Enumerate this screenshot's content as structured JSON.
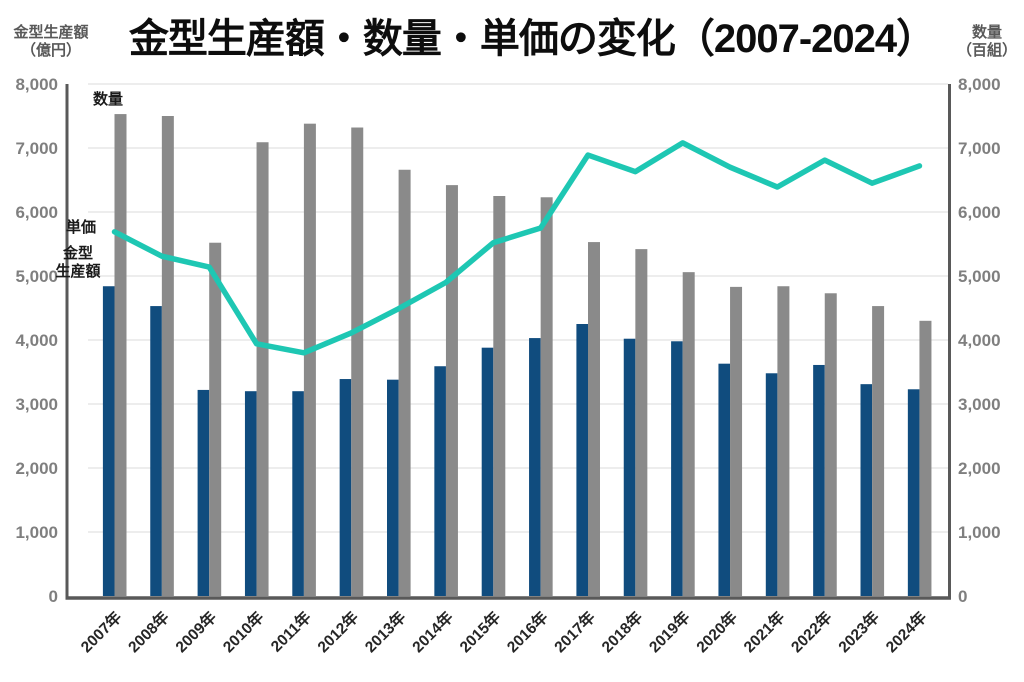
{
  "chart_data": {
    "type": "bar+line combo",
    "title": "金型生産額・数量・単価の変化（2007-2024）",
    "categories": [
      "2007年",
      "2008年",
      "2009年",
      "2010年",
      "2011年",
      "2012年",
      "2013年",
      "2014年",
      "2015年",
      "2016年",
      "2017年",
      "2018年",
      "2019年",
      "2020年",
      "2021年",
      "2022年",
      "2023年",
      "2024年"
    ],
    "series": [
      {
        "name": "金型生産額",
        "type": "bar",
        "axis": "left",
        "unit": "億円",
        "color": "#104c7e",
        "values": [
          4840,
          4530,
          3220,
          3200,
          3200,
          3390,
          3380,
          3590,
          3880,
          4030,
          4250,
          4020,
          3980,
          3630,
          3480,
          3610,
          3310,
          3230
        ]
      },
      {
        "name": "数量",
        "type": "bar",
        "axis": "right",
        "unit": "百組",
        "color": "#8a8a8a",
        "values": [
          7530,
          7500,
          5520,
          7090,
          7380,
          7320,
          6660,
          6420,
          6250,
          6230,
          5530,
          5420,
          5060,
          4830,
          4840,
          4730,
          4530,
          4300
        ]
      },
      {
        "name": "単価",
        "type": "line",
        "color": "#1ec7b3",
        "values": [
          5690,
          5310,
          5140,
          3940,
          3800,
          4110,
          4490,
          4900,
          5520,
          5750,
          6890,
          6630,
          7080,
          6700,
          6390,
          6810,
          6450,
          6720
        ]
      }
    ],
    "left_axis": {
      "title": "金型生産額",
      "unit": "（億円）",
      "range": [
        0,
        8000
      ],
      "tick_step": 1000,
      "ticks": [
        "0",
        "1,000",
        "2,000",
        "3,000",
        "4,000",
        "5,000",
        "6,000",
        "7,000",
        "8,000"
      ]
    },
    "right_axis": {
      "title": "数量",
      "unit": "（百組）",
      "range": [
        0,
        8000
      ],
      "tick_step": 1000,
      "ticks": [
        "0",
        "1,000",
        "2,000",
        "3,000",
        "4,000",
        "5,000",
        "6,000",
        "7,000",
        "8,000"
      ]
    },
    "annotations": {
      "quantity": "数量",
      "unit_price": "単価",
      "value_line1": "金型",
      "value_line2": "生産額"
    },
    "grid": true,
    "gridline_color": "#e7e7e7",
    "axis_line_color": "#595959",
    "legend_position": "in-plot text annotations"
  }
}
